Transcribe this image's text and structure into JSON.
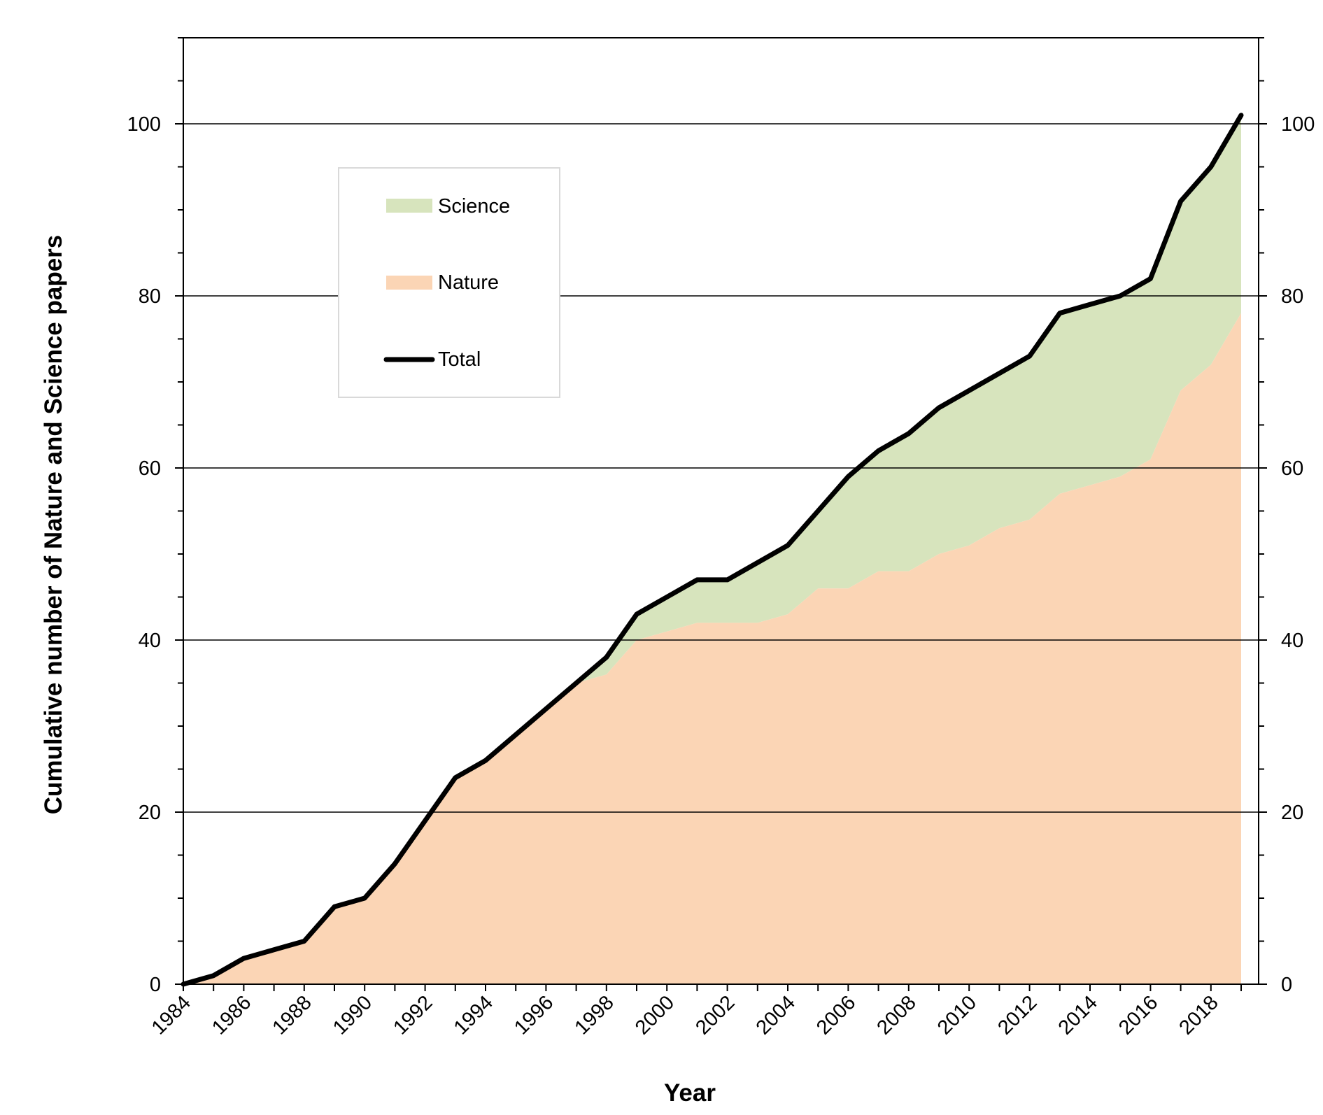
{
  "chart_data": {
    "type": "area",
    "xlabel": "Year",
    "ylabel": "Cumulative number of Nature and Science papers",
    "xlim": [
      1984,
      2019
    ],
    "ylim": [
      0,
      110
    ],
    "x_tick_labels": [
      "1984",
      "1986",
      "1988",
      "1990",
      "1992",
      "1994",
      "1996",
      "1998",
      "2000",
      "2002",
      "2004",
      "2006",
      "2008",
      "2010",
      "2012",
      "2014",
      "2016",
      "2018"
    ],
    "y_tick_labels": [
      "0",
      "20",
      "40",
      "60",
      "80",
      "100"
    ],
    "y_right_tick_labels": [
      "0",
      "20",
      "40",
      "60",
      "80",
      "100"
    ],
    "gridlines": "horizontal at major y ticks",
    "legend_position": "upper-left inside plot",
    "x": [
      1984,
      1985,
      1986,
      1987,
      1988,
      1989,
      1990,
      1991,
      1992,
      1993,
      1994,
      1995,
      1996,
      1997,
      1998,
      1999,
      2000,
      2001,
      2002,
      2003,
      2004,
      2005,
      2006,
      2007,
      2008,
      2009,
      2010,
      2011,
      2012,
      2013,
      2014,
      2015,
      2016,
      2017,
      2018,
      2019
    ],
    "series": [
      {
        "name": "Nature",
        "kind": "stacked-area",
        "color": "#FBD5B5",
        "values": [
          0,
          1,
          3,
          4,
          5,
          9,
          10,
          14,
          19,
          24,
          26,
          29,
          32,
          35,
          36,
          40,
          41,
          42,
          42,
          42,
          43,
          46,
          46,
          48,
          48,
          50,
          51,
          53,
          54,
          57,
          58,
          59,
          61,
          69,
          72,
          78
        ]
      },
      {
        "name": "Science",
        "kind": "stacked-area",
        "color": "#D7E4BD",
        "values": [
          0,
          0,
          0,
          0,
          0,
          0,
          0,
          0,
          0,
          0,
          0,
          0,
          0,
          0,
          2,
          3,
          4,
          5,
          5,
          7,
          8,
          9,
          13,
          14,
          16,
          17,
          18,
          18,
          19,
          21,
          21,
          21,
          21,
          22,
          23,
          23
        ]
      },
      {
        "name": "Total",
        "kind": "line",
        "color": "#000000",
        "values": [
          0,
          1,
          3,
          4,
          5,
          9,
          10,
          14,
          19,
          24,
          26,
          29,
          32,
          35,
          38,
          43,
          45,
          47,
          47,
          49,
          51,
          55,
          59,
          62,
          64,
          67,
          69,
          71,
          73,
          78,
          79,
          80,
          82,
          91,
          95,
          101
        ]
      }
    ]
  }
}
